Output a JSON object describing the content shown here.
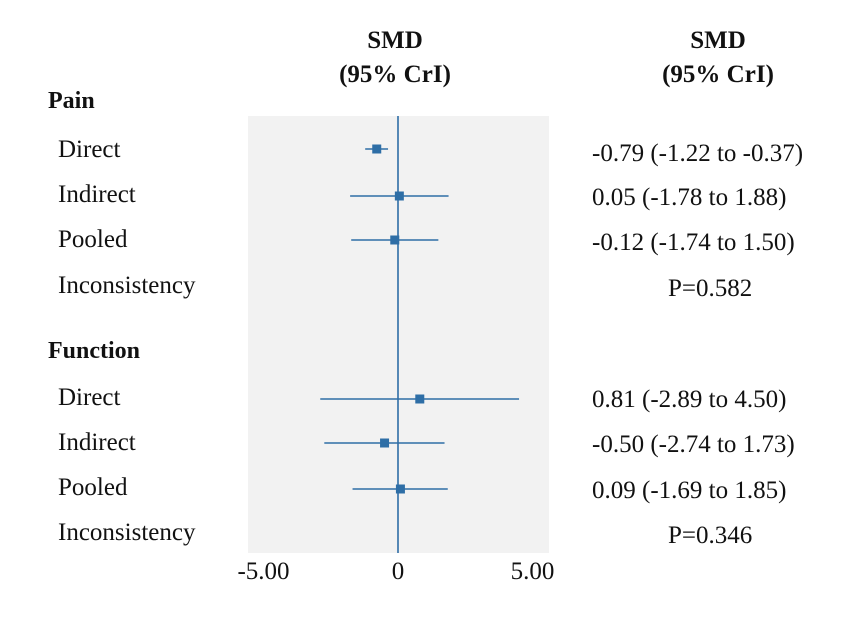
{
  "headers": {
    "middle": [
      "SMD",
      "(95% CrI)"
    ],
    "right": [
      "SMD",
      "(95% CrI)"
    ]
  },
  "colors": {
    "panel_bg": "#f2f2f2",
    "marker": "#2e6ea6",
    "line": "#2e6ea6"
  },
  "groups": [
    {
      "name": "Pain",
      "rows": [
        {
          "label": "Direct",
          "estimate_text": "-0.79 (-1.22 to -0.37)"
        },
        {
          "label": "Indirect",
          "estimate_text": "0.05 (-1.78 to 1.88)"
        },
        {
          "label": "Pooled",
          "estimate_text": "-0.12 (-1.74 to 1.50)"
        },
        {
          "label": "Inconsistency",
          "estimate_text": "P=0.582"
        }
      ]
    },
    {
      "name": "Function",
      "rows": [
        {
          "label": "Direct",
          "estimate_text": "0.81 (-2.89 to 4.50)"
        },
        {
          "label": "Indirect",
          "estimate_text": "-0.50 (-2.74 to 1.73)"
        },
        {
          "label": "Pooled",
          "estimate_text": "0.09 (-1.69 to 1.85)"
        },
        {
          "label": "Inconsistency",
          "estimate_text": "P=0.346"
        }
      ]
    }
  ],
  "chart_data": {
    "type": "forest",
    "xlim": [
      -5.0,
      5.0
    ],
    "x_ticks": [
      "-5.00",
      "0",
      "5.00"
    ],
    "x_tick_values": [
      -5.0,
      0.0,
      5.0
    ],
    "reference_line": 0,
    "series": [
      {
        "group": "Pain",
        "label": "Direct",
        "estimate": -0.79,
        "lower": -1.22,
        "upper": -0.37
      },
      {
        "group": "Pain",
        "label": "Indirect",
        "estimate": 0.05,
        "lower": -1.78,
        "upper": 1.88
      },
      {
        "group": "Pain",
        "label": "Pooled",
        "estimate": -0.12,
        "lower": -1.74,
        "upper": 1.5
      },
      {
        "group": "Function",
        "label": "Direct",
        "estimate": 0.81,
        "lower": -2.89,
        "upper": 4.5
      },
      {
        "group": "Function",
        "label": "Indirect",
        "estimate": -0.5,
        "lower": -2.74,
        "upper": 1.73
      },
      {
        "group": "Function",
        "label": "Pooled",
        "estimate": 0.09,
        "lower": -1.69,
        "upper": 1.85
      }
    ]
  }
}
